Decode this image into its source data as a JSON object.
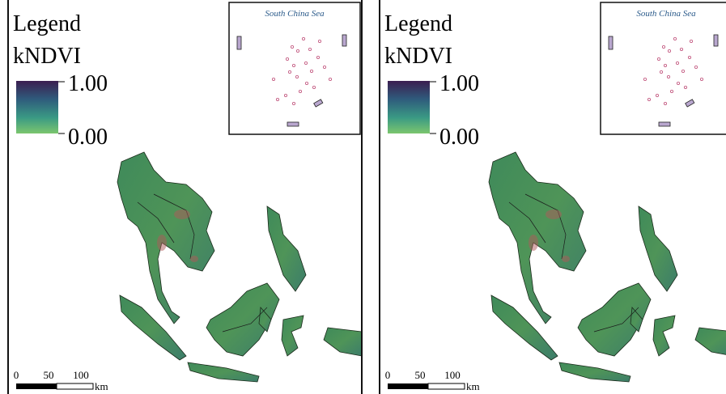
{
  "panels": [
    {
      "legend_title": "Legend",
      "variable": "kNDVI",
      "colorbar_ticks": [
        "1.00",
        "0.00"
      ],
      "inset_label": "South China Sea",
      "scale_labels": [
        "0",
        "50",
        "100"
      ],
      "scale_unit": "km"
    },
    {
      "legend_title": "Legend",
      "variable": "kNDVI",
      "colorbar_ticks": [
        "1.00",
        "0.00"
      ],
      "inset_label": "South China Sea",
      "scale_labels": [
        "0",
        "50",
        "100"
      ],
      "scale_unit": "km"
    }
  ]
}
